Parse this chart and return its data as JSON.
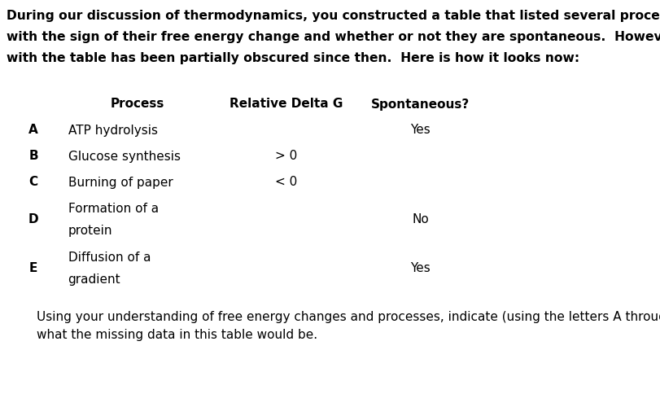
{
  "title_lines": [
    "During our discussion of thermodynamics, you constructed a table that listed several processes, along",
    "with the sign of their free energy change and whether or not they are spontaneous.  However, the page",
    "with the table has been partially obscured since then.  Here is how it looks now:"
  ],
  "footer_lines": [
    "Using your understanding of free energy changes and processes, indicate (using the letters A through E)",
    "what the missing data in this table would be."
  ],
  "col_headers": [
    "",
    "Process",
    "Relative Delta G",
    "Spontaneous?"
  ],
  "rows": [
    {
      "label": "A",
      "process_lines": [
        "ATP hydrolysis"
      ],
      "delta_g": "",
      "spontaneous": "Yes"
    },
    {
      "label": "B",
      "process_lines": [
        "Glucose synthesis"
      ],
      "delta_g": "> 0",
      "spontaneous": ""
    },
    {
      "label": "C",
      "process_lines": [
        "Burning of paper"
      ],
      "delta_g": "< 0",
      "spontaneous": ""
    },
    {
      "label": "D",
      "process_lines": [
        "Formation of a",
        "protein"
      ],
      "delta_g": "",
      "spontaneous": "No"
    },
    {
      "label": "E",
      "process_lines": [
        "Diffusion of a",
        "gradient"
      ],
      "delta_g": "",
      "spontaneous": "Yes"
    }
  ],
  "bg_color": "#ffffff",
  "text_color": "#000000",
  "border_color": "#000000",
  "font_size_title": 11.2,
  "font_size_table": 11,
  "font_size_footer": 11
}
